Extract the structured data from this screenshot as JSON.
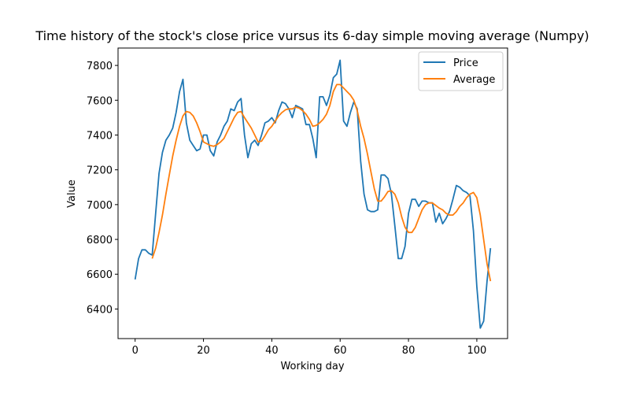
{
  "chart_data": {
    "type": "line",
    "title": "Time history of the stock's close price vursus its 6-day simple moving average (Numpy)",
    "xlabel": "Working day",
    "ylabel": "Value",
    "xlim": [
      -5,
      109
    ],
    "ylim": [
      6230,
      7900
    ],
    "xticks": [
      0,
      20,
      40,
      60,
      80,
      100
    ],
    "yticks": [
      6400,
      6600,
      6800,
      7000,
      7200,
      7400,
      7600,
      7800
    ],
    "legend": "top-right",
    "grid": false,
    "series": [
      {
        "name": "Price",
        "color": "#1f77b4",
        "x": [
          0,
          1,
          2,
          3,
          4,
          5,
          6,
          7,
          8,
          9,
          10,
          11,
          12,
          13,
          14,
          15,
          16,
          17,
          18,
          19,
          20,
          21,
          22,
          23,
          24,
          25,
          26,
          27,
          28,
          29,
          30,
          31,
          32,
          33,
          34,
          35,
          36,
          37,
          38,
          39,
          40,
          41,
          42,
          43,
          44,
          45,
          46,
          47,
          48,
          49,
          50,
          51,
          52,
          53,
          54,
          55,
          56,
          57,
          58,
          59,
          60,
          61,
          62,
          63,
          64,
          65,
          66,
          67,
          68,
          69,
          70,
          71,
          72,
          73,
          74,
          75,
          76,
          77,
          78,
          79,
          80,
          81,
          82,
          83,
          84,
          85,
          86,
          87,
          88,
          89,
          90,
          91,
          92,
          93,
          94,
          95,
          96,
          97,
          98,
          99,
          100,
          101,
          102,
          103,
          104
        ],
        "y": [
          6570,
          6690,
          6740,
          6740,
          6720,
          6710,
          6950,
          7180,
          7300,
          7370,
          7400,
          7440,
          7530,
          7650,
          7720,
          7470,
          7370,
          7340,
          7310,
          7320,
          7400,
          7400,
          7310,
          7280,
          7360,
          7400,
          7450,
          7480,
          7550,
          7540,
          7590,
          7610,
          7400,
          7270,
          7350,
          7370,
          7340,
          7400,
          7470,
          7480,
          7500,
          7470,
          7540,
          7590,
          7580,
          7550,
          7500,
          7570,
          7560,
          7550,
          7460,
          7460,
          7380,
          7270,
          7620,
          7620,
          7570,
          7630,
          7730,
          7750,
          7830,
          7480,
          7450,
          7530,
          7590,
          7550,
          7250,
          7060,
          6970,
          6960,
          6960,
          6970,
          7170,
          7170,
          7150,
          7060,
          6880,
          6690,
          6690,
          6760,
          6950,
          7030,
          7030,
          6990,
          7020,
          7020,
          7010,
          7010,
          6900,
          6950,
          6890,
          6920,
          6960,
          7030,
          7110,
          7100,
          7080,
          7070,
          7050,
          6850,
          6530,
          6290,
          6330,
          6560,
          6750
        ]
      },
      {
        "name": "Average",
        "color": "#ff7f0e",
        "x": [
          5,
          6,
          7,
          8,
          9,
          10,
          11,
          12,
          13,
          14,
          15,
          16,
          17,
          18,
          19,
          20,
          21,
          22,
          23,
          24,
          25,
          26,
          27,
          28,
          29,
          30,
          31,
          32,
          33,
          34,
          35,
          36,
          37,
          38,
          39,
          40,
          41,
          42,
          43,
          44,
          45,
          46,
          47,
          48,
          49,
          50,
          51,
          52,
          53,
          54,
          55,
          56,
          57,
          58,
          59,
          60,
          61,
          62,
          63,
          64,
          65,
          66,
          67,
          68,
          69,
          70,
          71,
          72,
          73,
          74,
          75,
          76,
          77,
          78,
          79,
          80,
          81,
          82,
          83,
          84,
          85,
          86,
          87,
          88,
          89,
          90,
          91,
          92,
          93,
          94,
          95,
          96,
          97,
          98,
          99,
          100,
          101,
          102,
          103,
          104
        ],
        "y": [
          6690,
          6750,
          6840,
          6940,
          7060,
          7170,
          7280,
          7370,
          7450,
          7510,
          7535,
          7530,
          7510,
          7470,
          7420,
          7360,
          7350,
          7340,
          7335,
          7345,
          7360,
          7380,
          7420,
          7460,
          7500,
          7530,
          7535,
          7500,
          7470,
          7440,
          7400,
          7360,
          7365,
          7395,
          7430,
          7450,
          7480,
          7510,
          7530,
          7545,
          7550,
          7550,
          7560,
          7555,
          7540,
          7520,
          7490,
          7450,
          7455,
          7470,
          7490,
          7520,
          7570,
          7650,
          7690,
          7690,
          7670,
          7650,
          7630,
          7600,
          7540,
          7450,
          7380,
          7290,
          7190,
          7090,
          7020,
          7020,
          7045,
          7075,
          7080,
          7060,
          7010,
          6930,
          6870,
          6840,
          6840,
          6870,
          6920,
          6970,
          7000,
          7010,
          7010,
          6995,
          6980,
          6970,
          6950,
          6940,
          6940,
          6960,
          6990,
          7010,
          7040,
          7060,
          7070,
          7040,
          6940,
          6800,
          6660,
          6560
        ]
      }
    ]
  }
}
